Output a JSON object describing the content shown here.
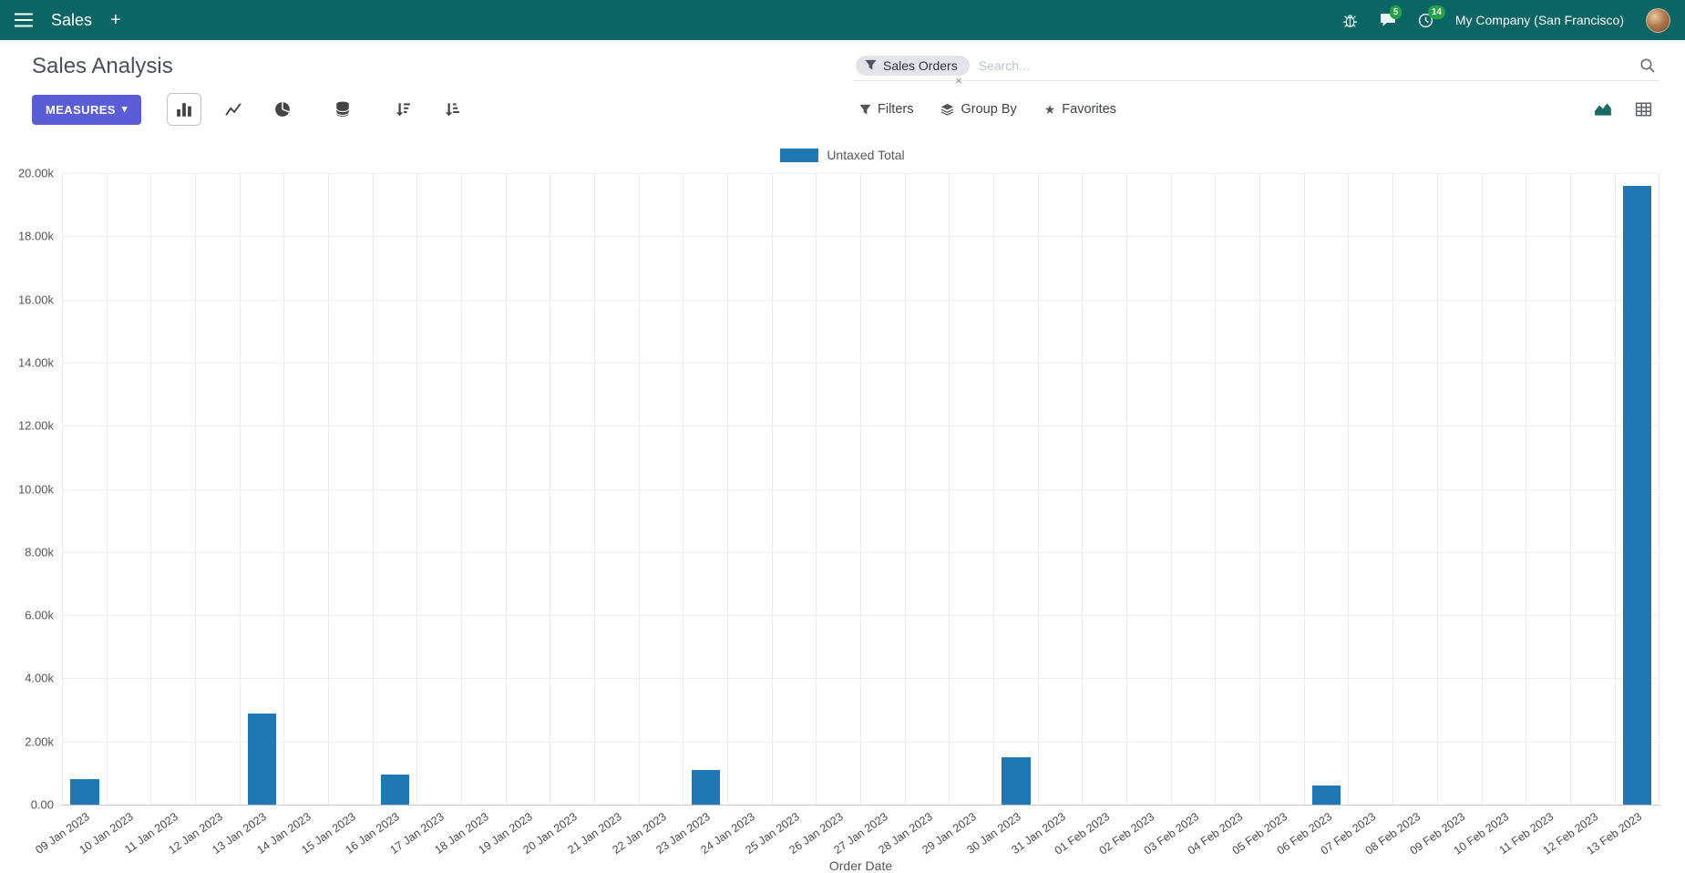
{
  "colors": {
    "navbar_bg": "#0a6564",
    "primary_button": "#5a5dd6",
    "badge_green": "#28a745",
    "bar_blue": "#1f77b4"
  },
  "navbar": {
    "app_name": "Sales",
    "messages_badge": "5",
    "activities_badge": "14",
    "company": "My Company (San Francisco)"
  },
  "control_panel": {
    "title": "Sales Analysis",
    "measures_label": "MEASURES",
    "search_facet": "Sales Orders",
    "search_placeholder": "Search...",
    "filters_label": "Filters",
    "group_by_label": "Group By",
    "favorites_label": "Favorites"
  },
  "chart_data": {
    "type": "bar",
    "title": "",
    "xlabel": "Order Date",
    "ylabel": "",
    "ylim": [
      0,
      20000
    ],
    "grid": true,
    "legend_position": "top",
    "y_ticks": [
      "20.00k",
      "18.00k",
      "16.00k",
      "14.00k",
      "12.00k",
      "10.00k",
      "8.00k",
      "6.00k",
      "4.00k",
      "2.00k",
      "0.00"
    ],
    "categories": [
      "09 Jan 2023",
      "10 Jan 2023",
      "11 Jan 2023",
      "12 Jan 2023",
      "13 Jan 2023",
      "14 Jan 2023",
      "15 Jan 2023",
      "16 Jan 2023",
      "17 Jan 2023",
      "18 Jan 2023",
      "19 Jan 2023",
      "20 Jan 2023",
      "21 Jan 2023",
      "22 Jan 2023",
      "23 Jan 2023",
      "24 Jan 2023",
      "25 Jan 2023",
      "26 Jan 2023",
      "27 Jan 2023",
      "28 Jan 2023",
      "29 Jan 2023",
      "30 Jan 2023",
      "31 Jan 2023",
      "01 Feb 2023",
      "02 Feb 2023",
      "03 Feb 2023",
      "04 Feb 2023",
      "05 Feb 2023",
      "06 Feb 2023",
      "07 Feb 2023",
      "08 Feb 2023",
      "09 Feb 2023",
      "10 Feb 2023",
      "11 Feb 2023",
      "12 Feb 2023",
      "13 Feb 2023"
    ],
    "series": [
      {
        "name": "Untaxed Total",
        "color": "#1f77b4",
        "values": [
          800,
          0,
          0,
          0,
          2900,
          0,
          0,
          950,
          0,
          0,
          0,
          0,
          0,
          0,
          1100,
          0,
          0,
          0,
          0,
          0,
          0,
          1500,
          0,
          0,
          0,
          0,
          0,
          0,
          600,
          0,
          0,
          0,
          0,
          0,
          0,
          19600
        ]
      }
    ]
  }
}
